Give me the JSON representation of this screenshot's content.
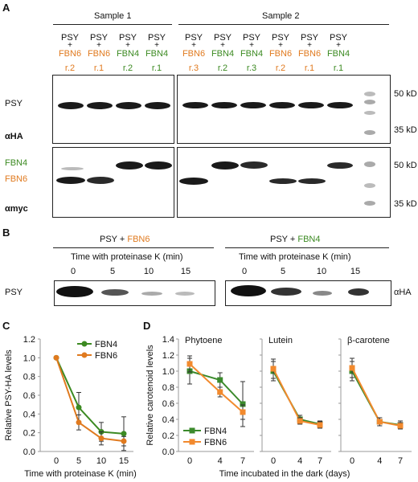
{
  "panels": {
    "a": "A",
    "b": "B",
    "c": "C",
    "d": "D"
  },
  "panel_a": {
    "sample1": "Sample 1",
    "sample2": "Sample 2",
    "lanes": [
      {
        "top": "PSY",
        "plus": "+",
        "fbn": "FBN6",
        "rep": "r.2",
        "color": "#e07a1f"
      },
      {
        "top": "PSY",
        "plus": "+",
        "fbn": "FBN6",
        "rep": "r.1",
        "color": "#e07a1f"
      },
      {
        "top": "PSY",
        "plus": "+",
        "fbn": "FBN4",
        "rep": "r.2",
        "color": "#3c8a22"
      },
      {
        "top": "PSY",
        "plus": "+",
        "fbn": "FBN4",
        "rep": "r.1",
        "color": "#3c8a22"
      },
      {
        "top": "PSY",
        "plus": "+",
        "fbn": "FBN6",
        "rep": "r.3",
        "color": "#e07a1f"
      },
      {
        "top": "PSY",
        "plus": "+",
        "fbn": "FBN4",
        "rep": "r.2",
        "color": "#3c8a22"
      },
      {
        "top": "PSY",
        "plus": "+",
        "fbn": "FBN4",
        "rep": "r.3",
        "color": "#3c8a22"
      },
      {
        "top": "PSY",
        "plus": "+",
        "fbn": "FBN6",
        "rep": "r.2",
        "color": "#e07a1f"
      },
      {
        "top": "PSY",
        "plus": "+",
        "fbn": "FBN6",
        "rep": "r.1",
        "color": "#e07a1f"
      },
      {
        "top": "PSY",
        "plus": "+",
        "fbn": "FBN4",
        "rep": "r.1",
        "color": "#3c8a22"
      }
    ],
    "psy_label": "PSY",
    "aha_label": "αHA",
    "fbn4_label": "FBN4",
    "fbn6_label": "FBN6",
    "amyc_label": "αmyc",
    "mw_50_top": "50 kD",
    "mw_35_top": "35 kD",
    "mw_50_bot": "50 kD",
    "mw_35_bot": "35 kD"
  },
  "panel_b": {
    "left_title_psy": "PSY + ",
    "left_title_fbn": "FBN6",
    "right_title_psy": "PSY + ",
    "right_title_fbn": "FBN4",
    "time_label_left": "Time with proteinase K (min)",
    "time_label_right": "Time with proteinase K (min)",
    "times_left": [
      "0",
      "5",
      "10",
      "15"
    ],
    "times_right": [
      "0",
      "5",
      "10",
      "15"
    ],
    "psy_label": "PSY",
    "aha_label": "αHA"
  },
  "colors": {
    "fbn4": "#3c8a22",
    "fbn6": "#e07a1f",
    "fbn4_d": "#3b8a2c",
    "fbn6_d": "#f28a2e"
  },
  "chart_data": [
    {
      "type": "line",
      "panel": "C",
      "xlabel": "Time with proteinase K (min)",
      "ylabel": "Relative PSY-HA levels",
      "x": [
        0,
        5,
        10,
        15
      ],
      "ylim": [
        0,
        1.2
      ],
      "yticks": [
        "0.0",
        "0.2",
        "0.4",
        "0.6",
        "0.8",
        "1.0",
        "1.2"
      ],
      "xticks": [
        "0",
        "5",
        "10",
        "15"
      ],
      "legend": "top-right",
      "series": [
        {
          "name": "FBN4",
          "values": [
            1.0,
            0.47,
            0.21,
            0.19
          ],
          "err": [
            0,
            0.16,
            0.1,
            0.18
          ]
        },
        {
          "name": "FBN6",
          "values": [
            1.0,
            0.31,
            0.14,
            0.11
          ],
          "err": [
            0,
            0.08,
            0.07,
            0.05
          ]
        }
      ]
    },
    {
      "type": "line",
      "panel": "D",
      "xlabel": "Time incubated in the dark (days)",
      "ylabel": "Relative carotenoid levels",
      "ylim": [
        0,
        1.4
      ],
      "yticks": [
        "0.0",
        "0.2",
        "0.4",
        "0.6",
        "0.8",
        "1.0",
        "1.2",
        "1.4"
      ],
      "xticks": [
        "0",
        "4",
        "7"
      ],
      "legend": "bottom-left",
      "subplots": [
        {
          "title": "Phytoene",
          "x": [
            0,
            4,
            7
          ],
          "series": [
            {
              "name": "FBN4",
              "values": [
                1.0,
                0.89,
                0.59
              ],
              "err": [
                0.16,
                0.09,
                0.28
              ]
            },
            {
              "name": "FBN6",
              "values": [
                1.09,
                0.74,
                0.49
              ],
              "err": [
                0.1,
                0.06,
                0.09
              ]
            }
          ]
        },
        {
          "title": "Lutein",
          "x": [
            0,
            4,
            7
          ],
          "series": [
            {
              "name": "FBN4",
              "values": [
                1.0,
                0.4,
                0.34
              ],
              "err": [
                0.12,
                0.05,
                0.04
              ]
            },
            {
              "name": "FBN6",
              "values": [
                1.03,
                0.38,
                0.33
              ],
              "err": [
                0.12,
                0.04,
                0.04
              ]
            }
          ]
        },
        {
          "title": "β-carotene",
          "x": [
            0,
            4,
            7
          ],
          "series": [
            {
              "name": "FBN4",
              "values": [
                1.0,
                0.37,
                0.33
              ],
              "err": [
                0.12,
                0.05,
                0.05
              ]
            },
            {
              "name": "FBN6",
              "values": [
                1.04,
                0.37,
                0.32
              ],
              "err": [
                0.12,
                0.05,
                0.04
              ]
            }
          ]
        }
      ]
    }
  ]
}
